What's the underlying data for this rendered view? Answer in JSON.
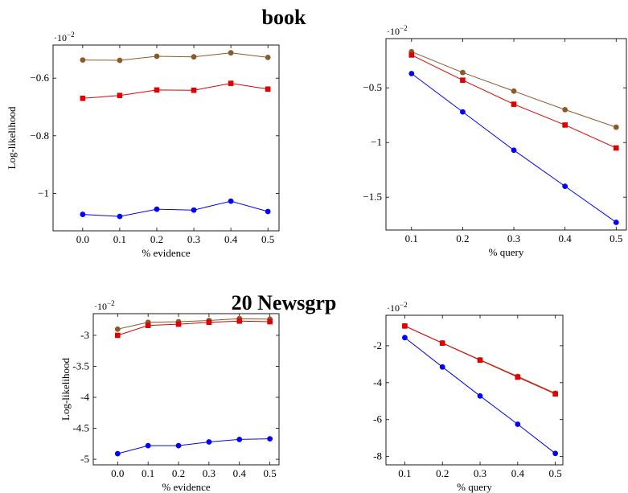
{
  "sections": [
    {
      "title": "book"
    },
    {
      "title": "20 Newsgrp"
    }
  ],
  "colors": {
    "blue": "#0000ff",
    "red": "#e00000",
    "brown": "#8b5a2b"
  },
  "chart_data": [
    {
      "type": "line",
      "section": "book",
      "xlabel": "% evidence",
      "ylabel": "Log-likelihood",
      "scale_note": {
        "base": "·10",
        "exponent": "−2"
      },
      "x": [
        0.0,
        0.1,
        0.2,
        0.3,
        0.4,
        0.5
      ],
      "x_ticks": [
        "0.0",
        "0.1",
        "0.2",
        "0.3",
        "0.4",
        "0.5"
      ],
      "y_ticks": [
        {
          "v": -0.6,
          "label": "−0.6"
        },
        {
          "v": -0.8,
          "label": "−0.8"
        },
        {
          "v": -1.0,
          "label": "−1"
        }
      ],
      "xlim": [
        -0.08,
        0.53
      ],
      "ylim": [
        -1.13,
        -0.485
      ],
      "series": [
        {
          "color": "brown",
          "marker": "circle",
          "values": [
            -0.537,
            -0.538,
            -0.524,
            -0.526,
            -0.512,
            -0.528
          ]
        },
        {
          "color": "red",
          "marker": "square",
          "values": [
            -0.67,
            -0.66,
            -0.641,
            -0.642,
            -0.618,
            -0.638
          ]
        },
        {
          "color": "blue",
          "marker": "circle",
          "values": [
            -1.073,
            -1.08,
            -1.055,
            -1.058,
            -1.027,
            -1.063
          ]
        }
      ]
    },
    {
      "type": "line",
      "section": "book",
      "xlabel": "% query",
      "ylabel": "",
      "scale_note": {
        "base": "·10",
        "exponent": "−2"
      },
      "x": [
        0.1,
        0.2,
        0.3,
        0.4,
        0.5
      ],
      "x_ticks": [
        "0.1",
        "0.2",
        "0.3",
        "0.4",
        "0.5"
      ],
      "y_ticks": [
        {
          "v": -0.5,
          "label": "−0.5"
        },
        {
          "v": -1.0,
          "label": "−1"
        },
        {
          "v": -1.5,
          "label": "−1.5"
        }
      ],
      "xlim": [
        0.05,
        0.52
      ],
      "ylim": [
        -1.8,
        -0.05
      ],
      "series": [
        {
          "color": "brown",
          "marker": "circle",
          "values": [
            -0.17,
            -0.36,
            -0.53,
            -0.7,
            -0.86
          ]
        },
        {
          "color": "red",
          "marker": "square",
          "values": [
            -0.2,
            -0.43,
            -0.65,
            -0.84,
            -1.05
          ]
        },
        {
          "color": "blue",
          "marker": "circle",
          "values": [
            -0.37,
            -0.72,
            -1.07,
            -1.4,
            -1.73
          ]
        }
      ]
    },
    {
      "type": "line",
      "section": "20 Newsgrp",
      "xlabel": "% evidence",
      "ylabel": "Log-likelihood",
      "scale_note": {
        "base": "·10",
        "exponent": "−2"
      },
      "x": [
        0.0,
        0.1,
        0.2,
        0.3,
        0.4,
        0.5
      ],
      "x_ticks": [
        "0.0",
        "0.1",
        "0.2",
        "0.3",
        "0.4",
        "0.5"
      ],
      "y_ticks": [
        {
          "v": -3.0,
          "label": "-3"
        },
        {
          "v": -3.5,
          "label": "-3.5"
        },
        {
          "v": -4.0,
          "label": "-4"
        },
        {
          "v": -4.5,
          "label": "-4.5"
        },
        {
          "v": -5.0,
          "label": "-5"
        }
      ],
      "xlim": [
        -0.08,
        0.53
      ],
      "ylim": [
        -5.09,
        -2.65
      ],
      "series": [
        {
          "color": "brown",
          "marker": "circle",
          "values": [
            -2.9,
            -2.79,
            -2.78,
            -2.76,
            -2.73,
            -2.74
          ]
        },
        {
          "color": "red",
          "marker": "square",
          "values": [
            -3.0,
            -2.84,
            -2.82,
            -2.79,
            -2.77,
            -2.78
          ]
        },
        {
          "color": "blue",
          "marker": "circle",
          "values": [
            -4.91,
            -4.78,
            -4.78,
            -4.72,
            -4.68,
            -4.67
          ]
        }
      ]
    },
    {
      "type": "line",
      "section": "20 Newsgrp",
      "xlabel": "% query",
      "ylabel": "",
      "scale_note": {
        "base": "·10",
        "exponent": "−2"
      },
      "x": [
        0.1,
        0.2,
        0.3,
        0.4,
        0.5
      ],
      "x_ticks": [
        "0.1",
        "0.2",
        "0.3",
        "0.4",
        "0.5"
      ],
      "y_ticks": [
        {
          "v": -2,
          "label": "-2"
        },
        {
          "v": -4,
          "label": "-4"
        },
        {
          "v": -6,
          "label": "-6"
        },
        {
          "v": -8,
          "label": "-8"
        }
      ],
      "xlim": [
        0.05,
        0.52
      ],
      "ylim": [
        -8.45,
        -0.35
      ],
      "series": [
        {
          "color": "brown",
          "marker": "circle",
          "values": [
            -0.93,
            -1.85,
            -2.76,
            -3.66,
            -4.57
          ]
        },
        {
          "color": "red",
          "marker": "square",
          "values": [
            -0.93,
            -1.86,
            -2.78,
            -3.7,
            -4.61
          ]
        },
        {
          "color": "blue",
          "marker": "circle",
          "values": [
            -1.56,
            -3.15,
            -4.72,
            -6.25,
            -7.83
          ]
        }
      ]
    }
  ]
}
